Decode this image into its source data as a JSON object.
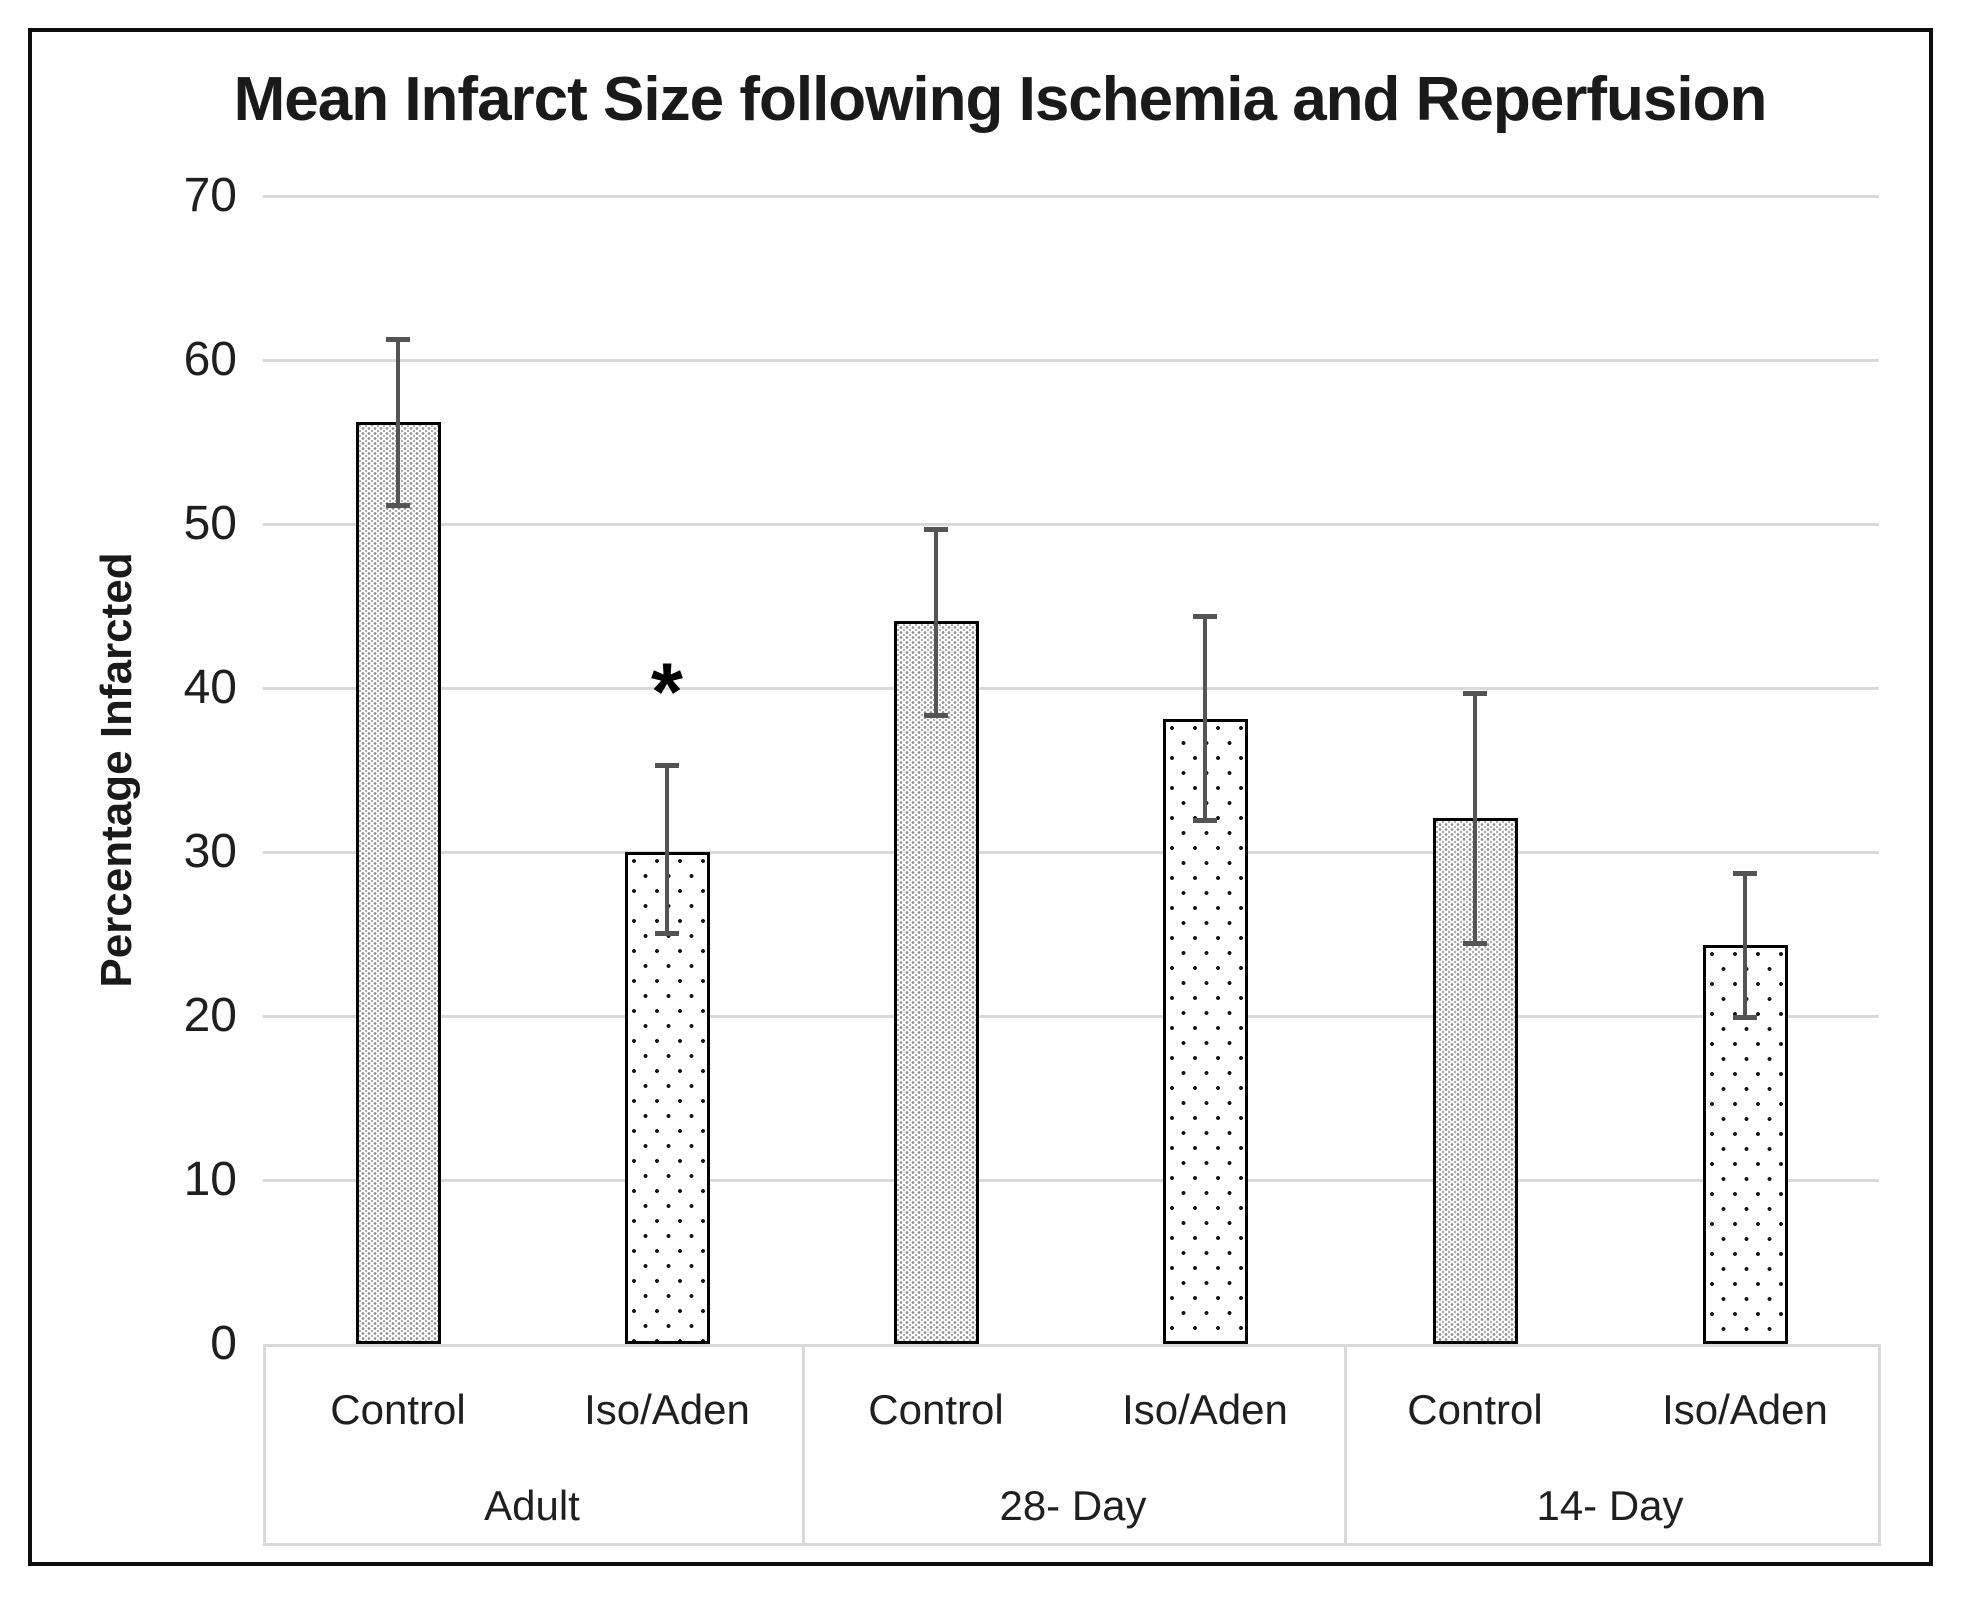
{
  "title": "Mean Infarct Size following Ischemia and Reperfusion",
  "y_axis": {
    "label": "Percentage Infarcted",
    "tick_labels": [
      "70",
      "60",
      "50",
      "40",
      "30",
      "20",
      "10",
      "0"
    ]
  },
  "annotation_symbol": "*",
  "colors": {
    "gridline": "#d9d9d9",
    "error_bar": "#545454",
    "bar_border": "#000000",
    "text": "#1f1f1f",
    "frame_border": "#0d0d0d",
    "background": "#ffffff"
  },
  "chart_data": {
    "type": "bar",
    "title": "Mean Infarct Size following Ischemia and Reperfusion",
    "xlabel": "",
    "ylabel": "Percentage Infarcted",
    "ylim": [
      0,
      70
    ],
    "yticks": [
      0,
      10,
      20,
      30,
      40,
      50,
      60,
      70
    ],
    "grid": "horizontal",
    "legend": "none",
    "groups": [
      {
        "label": "Adult"
      },
      {
        "label": "28- Day"
      },
      {
        "label": "14- Day"
      }
    ],
    "bars": [
      {
        "group": "Adult",
        "category": "Control",
        "value": 56.2,
        "error_low": 51.1,
        "error_high": 61.3,
        "pattern": "dotted-25-gray",
        "annotation": ""
      },
      {
        "group": "Adult",
        "category": "Iso/Aden",
        "value": 30.0,
        "error_low": 25.0,
        "error_high": 35.3,
        "pattern": "dotted-5-black",
        "annotation": "*"
      },
      {
        "group": "28- Day",
        "category": "Control",
        "value": 44.1,
        "error_low": 38.3,
        "error_high": 49.7,
        "pattern": "dotted-25-gray",
        "annotation": ""
      },
      {
        "group": "28- Day",
        "category": "Iso/Aden",
        "value": 38.1,
        "error_low": 31.9,
        "error_high": 44.4,
        "pattern": "dotted-5-black",
        "annotation": ""
      },
      {
        "group": "14- Day",
        "category": "Control",
        "value": 32.1,
        "error_low": 24.4,
        "error_high": 39.7,
        "pattern": "dotted-25-gray",
        "annotation": ""
      },
      {
        "group": "14- Day",
        "category": "Iso/Aden",
        "value": 24.3,
        "error_low": 19.9,
        "error_high": 28.7,
        "pattern": "dotted-5-black",
        "annotation": ""
      }
    ]
  }
}
